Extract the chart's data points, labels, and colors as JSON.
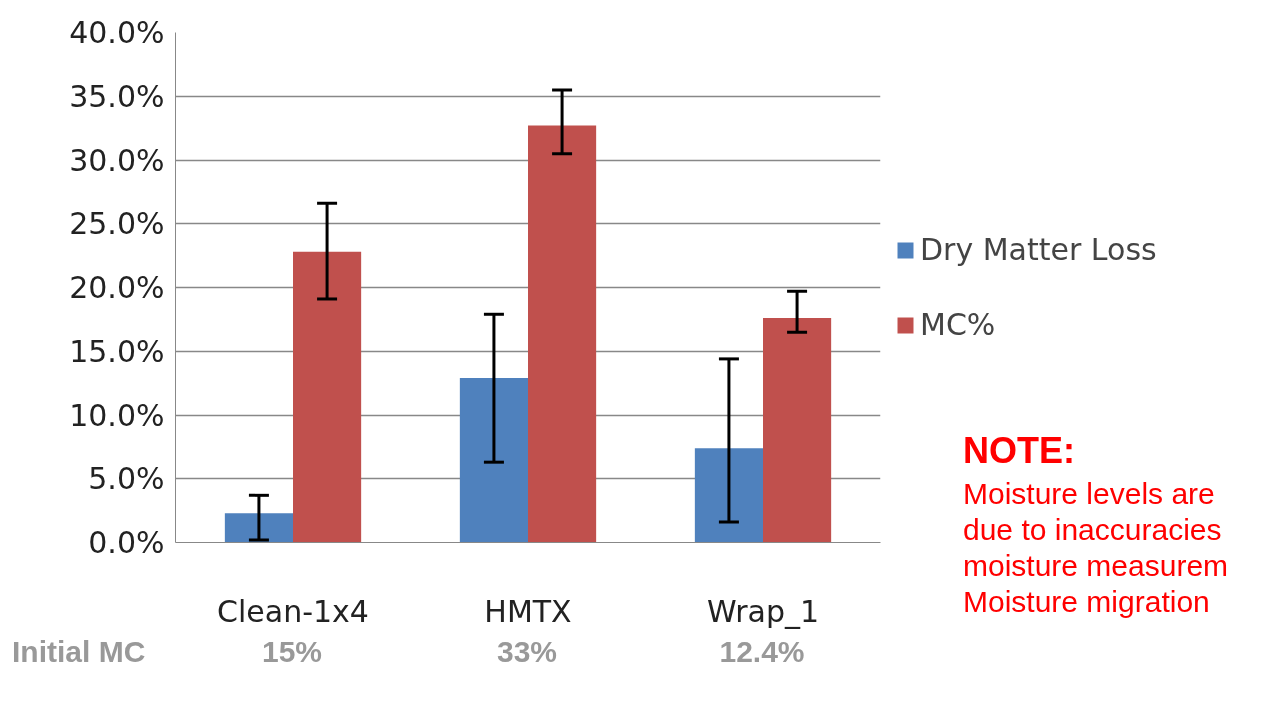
{
  "chart_data": {
    "type": "bar",
    "categories": [
      "Clean-1x4",
      "HMTX",
      "Wrap_1"
    ],
    "series": [
      {
        "name": "Dry Matter Loss",
        "color": "#4f81bd",
        "values": [
          2.3,
          12.9,
          7.4
        ],
        "errors": [
          [
            0.2,
            3.7
          ],
          [
            6.3,
            17.9
          ],
          [
            1.6,
            14.4
          ]
        ]
      },
      {
        "name": "MC%",
        "color": "#c0504d",
        "values": [
          22.8,
          32.7,
          17.6
        ],
        "errors": [
          [
            19.1,
            26.6
          ],
          [
            30.5,
            35.5
          ],
          [
            16.5,
            19.7
          ]
        ]
      }
    ],
    "ylim": [
      0,
      40
    ],
    "yticks": [
      {
        "value": 0,
        "label": "0.0%"
      },
      {
        "value": 5,
        "label": "5.0%"
      },
      {
        "value": 10,
        "label": "10.0%"
      },
      {
        "value": 15,
        "label": "15.0%"
      },
      {
        "value": 20,
        "label": "20.0%"
      },
      {
        "value": 25,
        "label": "25.0%"
      },
      {
        "value": 30,
        "label": "30.0%"
      },
      {
        "value": 35,
        "label": "35.0%"
      },
      {
        "value": 40,
        "label": "40.0%"
      }
    ],
    "grid": "y",
    "legend": "right",
    "annotations": [
      "Initial MC",
      "15%",
      "33%",
      "12.4%",
      "NOTE:",
      "Moisture levels are",
      "due to inaccuracies",
      "moisture measurem",
      "Moisture migration"
    ]
  }
}
